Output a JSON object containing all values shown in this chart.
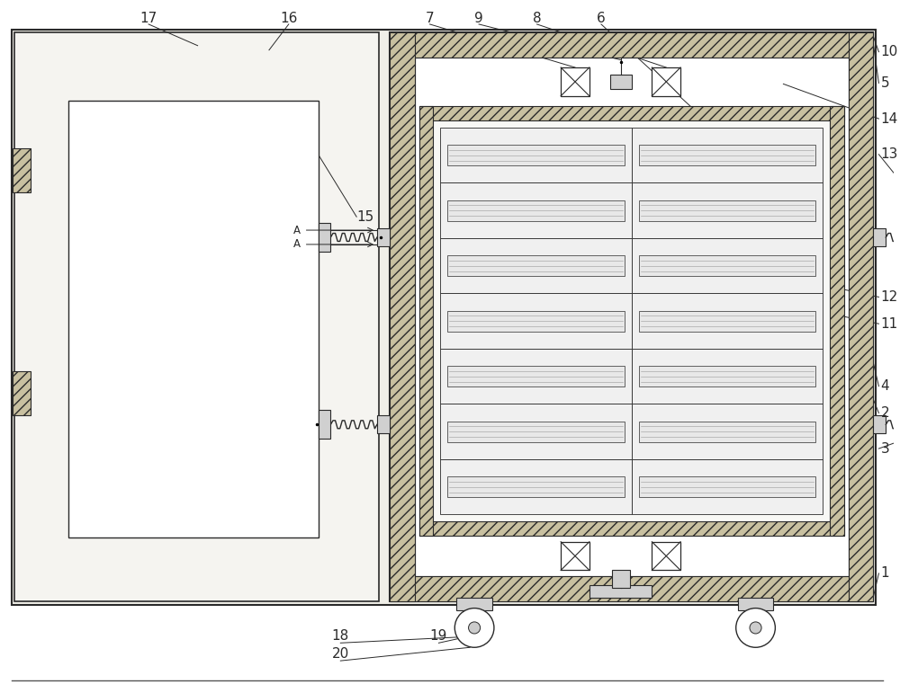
{
  "bg_color": "#ffffff",
  "line_color": "#2a2a2a",
  "figsize": [
    10.0,
    7.71
  ],
  "dpi": 100,
  "hatch_fc": "#c8c0a0",
  "hatch_pattern": "///",
  "drawer_fc": "#f0f0f0",
  "drawer_ec": "#444444",
  "inner_fc": "#f8f8f5",
  "outer_fc": "#f2f1ec",
  "door_fc": "#f5f4f0"
}
